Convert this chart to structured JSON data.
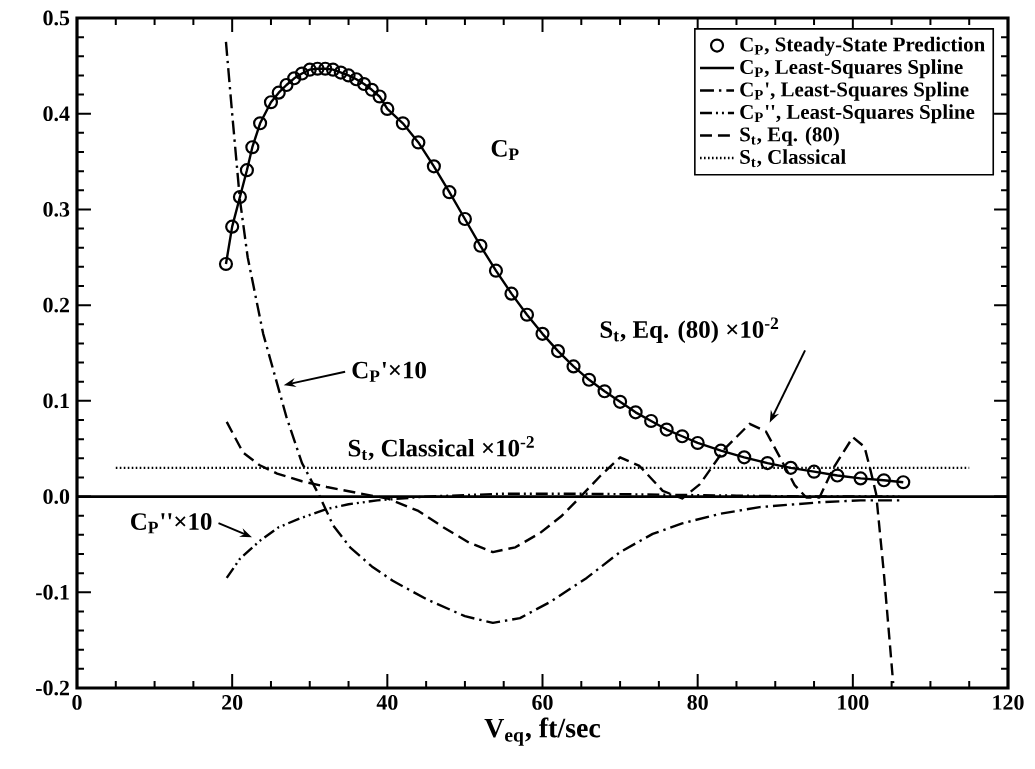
{
  "chart_data": {
    "type": "line",
    "xlabel": "V$_{eq}$,  ft/sec",
    "xlim": [
      0,
      120
    ],
    "xticks": [
      0,
      20,
      40,
      60,
      80,
      100,
      120
    ],
    "ylim": [
      -0.2,
      0.5
    ],
    "yticks": [
      {
        "value": -0.2,
        "label": "-0.2"
      },
      {
        "value": -0.1,
        "label": "-0.1"
      },
      {
        "value": 0,
        "label": "0.0"
      },
      {
        "value": 0.1,
        "label": "0.1"
      },
      {
        "value": 0.2,
        "label": "0.2"
      },
      {
        "value": 0.3,
        "label": "0.3"
      },
      {
        "value": 0.4,
        "label": "0.4"
      },
      {
        "value": 0.5,
        "label": "0.5"
      }
    ],
    "legend": "top right",
    "grid": false,
    "ref_lines": [
      {
        "axis": "y",
        "value": 0,
        "color": "#000000",
        "line_style": "solid"
      }
    ],
    "series": [
      {
        "name": "C$_{P}$, Steady-State Prediction",
        "type": "scatter",
        "marker": "circle",
        "color": "#000000",
        "x": [
          19.2,
          20,
          21,
          21.9,
          22.6,
          23.6,
          25,
          26,
          27,
          28,
          29,
          30,
          31,
          32,
          33,
          34,
          35,
          36,
          37,
          38,
          39,
          40,
          42,
          44,
          46,
          48,
          50,
          52,
          54,
          56,
          58,
          60,
          62,
          64,
          66,
          68,
          70,
          72,
          74,
          76,
          78,
          80,
          83,
          86,
          89,
          92,
          95,
          98,
          101,
          104,
          106.5
        ],
        "values": [
          0.243,
          0.282,
          0.313,
          0.341,
          0.365,
          0.39,
          0.412,
          0.422,
          0.43,
          0.437,
          0.442,
          0.446,
          0.447,
          0.447,
          0.446,
          0.443,
          0.44,
          0.436,
          0.431,
          0.425,
          0.418,
          0.405,
          0.39,
          0.37,
          0.345,
          0.318,
          0.29,
          0.262,
          0.236,
          0.212,
          0.19,
          0.17,
          0.152,
          0.136,
          0.122,
          0.11,
          0.099,
          0.088,
          0.079,
          0.07,
          0.063,
          0.056,
          0.048,
          0.041,
          0.035,
          0.03,
          0.026,
          0.022,
          0.019,
          0.017,
          0.015
        ]
      },
      {
        "name": "C$_{P}$, Least-Squares Spline",
        "line_style": "solid",
        "color": "#000000",
        "x": [
          19.2,
          20,
          21,
          21.9,
          22.6,
          23.6,
          25,
          26,
          27,
          28,
          29,
          30,
          31,
          32,
          33,
          34,
          35,
          36,
          37,
          38,
          39,
          40,
          42,
          44,
          46,
          48,
          50,
          52,
          54,
          56,
          58,
          60,
          62,
          64,
          66,
          68,
          70,
          72,
          74,
          76,
          78,
          80,
          83,
          86,
          89,
          92,
          95,
          98,
          101,
          104,
          106.5
        ],
        "values": [
          0.243,
          0.282,
          0.313,
          0.341,
          0.365,
          0.39,
          0.412,
          0.422,
          0.43,
          0.437,
          0.442,
          0.446,
          0.447,
          0.447,
          0.446,
          0.443,
          0.44,
          0.436,
          0.431,
          0.425,
          0.418,
          0.405,
          0.39,
          0.37,
          0.345,
          0.318,
          0.29,
          0.262,
          0.236,
          0.212,
          0.19,
          0.17,
          0.152,
          0.136,
          0.122,
          0.11,
          0.099,
          0.088,
          0.079,
          0.07,
          0.063,
          0.056,
          0.048,
          0.041,
          0.035,
          0.03,
          0.026,
          0.022,
          0.019,
          0.017,
          0.015
        ]
      },
      {
        "name": "C$_{P}$', Least-Squares Spline",
        "line_style": "dashdot",
        "color": "#000000",
        "x": [
          19.2,
          20,
          21,
          22,
          24,
          27,
          29,
          31.3,
          33,
          35.2,
          38,
          40.7,
          45,
          50,
          53.6,
          57.1,
          61,
          65.7,
          70,
          74.2,
          78,
          82.9,
          88,
          95.7,
          101,
          106
        ],
        "values": [
          0.475,
          0.4,
          0.31,
          0.25,
          0.17,
          0.083,
          0.035,
          0.0,
          -0.03,
          -0.053,
          -0.073,
          -0.088,
          -0.107,
          -0.125,
          -0.132,
          -0.127,
          -0.11,
          -0.085,
          -0.058,
          -0.039,
          -0.028,
          -0.018,
          -0.011,
          -0.006,
          -0.004,
          -0.004
        ]
      },
      {
        "name": "C$_{P}$'', Least-Squares Spline",
        "line_style": "dashdotdot",
        "color": "#000000",
        "x": [
          19.3,
          21,
          23.6,
          26,
          29,
          32.2,
          35,
          38.7,
          45,
          55,
          65,
          75,
          85,
          95,
          106
        ],
        "values": [
          -0.085,
          -0.065,
          -0.046,
          -0.032,
          -0.022,
          -0.013,
          -0.008,
          -0.004,
          0.0,
          0.003,
          0.003,
          0.002,
          0.001,
          0.0,
          0.0
        ]
      },
      {
        "name": "S$_{t}$, Eq. (80)",
        "line_style": "dashed",
        "color": "#000000",
        "x": [
          19.3,
          21.4,
          23.5,
          25.8,
          29,
          32.2,
          36,
          40,
          44,
          47.2,
          50.5,
          53.6,
          56.5,
          59.7,
          62.5,
          64.8,
          67.5,
          70,
          72.5,
          75.5,
          78,
          80.3,
          83.5,
          86.7,
          88.8,
          90.6,
          92.5,
          94,
          95.7,
          97.5,
          100,
          101.5,
          102.2,
          103,
          104,
          105.2
        ],
        "values": [
          0.078,
          0.046,
          0.033,
          0.024,
          0.016,
          0.01,
          0.004,
          -0.002,
          -0.015,
          -0.032,
          -0.048,
          -0.058,
          -0.053,
          -0.038,
          -0.02,
          -0.001,
          0.022,
          0.041,
          0.032,
          0.006,
          -0.002,
          0.013,
          0.05,
          0.076,
          0.068,
          0.041,
          0.012,
          -0.001,
          -0.001,
          0.03,
          0.062,
          0.052,
          0.03,
          0.003,
          -0.08,
          -0.195
        ]
      },
      {
        "name": "S$_{t}$, Classical",
        "line_style": "dotted",
        "color": "#000000",
        "x": [
          5,
          115
        ],
        "values": [
          0.03,
          0.03
        ]
      }
    ],
    "annotations": [
      "C$_{P}$",
      "C$_{P}$'×10",
      "C$_{P}$''×10",
      "S$_{t}$, Classical ×10$^{-2}$",
      "S$_{t}$, Eq. (80) ×10$^{-2}$"
    ]
  }
}
